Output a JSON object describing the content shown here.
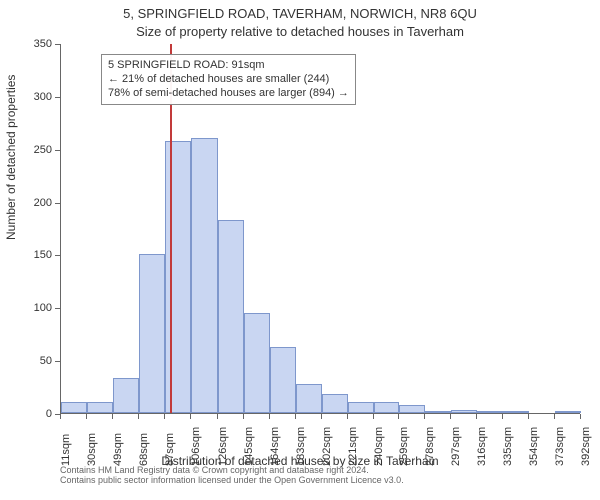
{
  "title_main": "5, SPRINGFIELD ROAD, TAVERHAM, NORWICH, NR8 6QU",
  "title_sub": "Size of property relative to detached houses in Taverham",
  "ylabel": "Number of detached properties",
  "xlabel": "Distribution of detached houses by size in Taverham",
  "credit_line1": "Contains HM Land Registry data © Crown copyright and database right 2024.",
  "credit_line2": "Contains public sector information licensed under the Open Government Licence v3.0.",
  "annot_line1": "5 SPRINGFIELD ROAD: 91sqm",
  "annot_line2": "← 21% of detached houses are smaller (244)",
  "annot_line3": "78% of semi-detached houses are larger (894) →",
  "chart": {
    "type": "histogram",
    "ylim": [
      0,
      350
    ],
    "ytick_step": 50,
    "background_color": "#ffffff",
    "axis_color": "#666666",
    "bar_fill": "#c9d6f2",
    "bar_stroke": "#7e97cc",
    "reference_line_color": "#c23a3a",
    "reference_line_x": 91,
    "reference_line_label": "91sqm",
    "font_family": "Arial",
    "title_fontsize": 13,
    "label_fontsize": 12,
    "tick_fontsize": 11,
    "annot_fontsize": 11,
    "x_tick_values": [
      11,
      30,
      49,
      68,
      87,
      106,
      126,
      145,
      164,
      183,
      202,
      221,
      240,
      259,
      278,
      297,
      316,
      335,
      354,
      373,
      392
    ],
    "x_tick_unit": "sqm",
    "bins": [
      {
        "start": 11,
        "end": 30,
        "count": 10
      },
      {
        "start": 30,
        "end": 49,
        "count": 10
      },
      {
        "start": 49,
        "end": 68,
        "count": 33
      },
      {
        "start": 68,
        "end": 87,
        "count": 150
      },
      {
        "start": 87,
        "end": 106,
        "count": 257
      },
      {
        "start": 106,
        "end": 126,
        "count": 260
      },
      {
        "start": 126,
        "end": 145,
        "count": 183
      },
      {
        "start": 145,
        "end": 164,
        "count": 95
      },
      {
        "start": 164,
        "end": 183,
        "count": 62
      },
      {
        "start": 183,
        "end": 202,
        "count": 27
      },
      {
        "start": 202,
        "end": 221,
        "count": 18
      },
      {
        "start": 221,
        "end": 240,
        "count": 10
      },
      {
        "start": 240,
        "end": 259,
        "count": 10
      },
      {
        "start": 259,
        "end": 278,
        "count": 8
      },
      {
        "start": 278,
        "end": 297,
        "count": 2
      },
      {
        "start": 297,
        "end": 316,
        "count": 3
      },
      {
        "start": 316,
        "end": 335,
        "count": 2
      },
      {
        "start": 335,
        "end": 354,
        "count": 2
      },
      {
        "start": 354,
        "end": 373,
        "count": 0
      },
      {
        "start": 373,
        "end": 392,
        "count": 1
      }
    ]
  }
}
